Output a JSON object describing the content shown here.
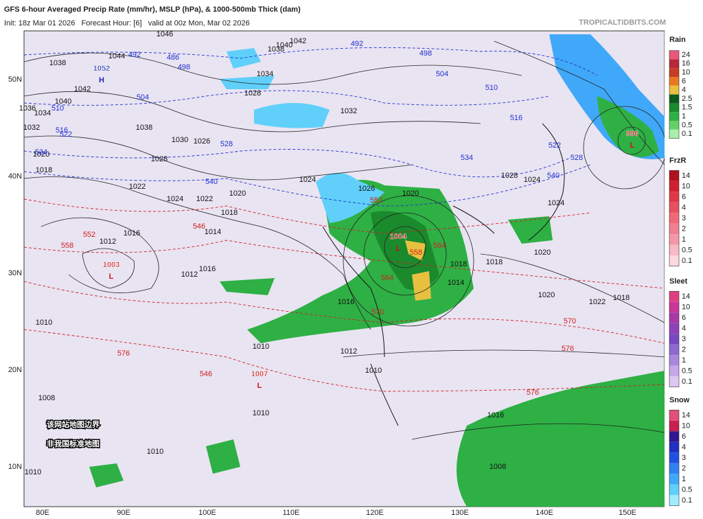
{
  "header": {
    "title": "GFS 6-hour Averaged Precip Rate (mm/hr), MSLP (hPa), & 1000-500mb Thick (dam)",
    "init": "Init: 18z Mar 01 2026   Forecast Hour: [6]   valid at 00z Mon, Mar 02 2026",
    "site": "TROPICALTIDBITS.COM"
  },
  "map": {
    "lon_labels": [
      "80E",
      "90E",
      "100E",
      "110E",
      "120E",
      "130E",
      "140E",
      "150E"
    ],
    "lat_labels": [
      "50N",
      "40N",
      "30N",
      "20N",
      "10N"
    ],
    "centers": [
      {
        "letter": "H",
        "value": "1052",
        "color": "#1a2ab0"
      },
      {
        "letter": "L",
        "value": "1003",
        "color": "#d01010"
      },
      {
        "letter": "L",
        "value": "1004",
        "color": "#d01010"
      },
      {
        "letter": "L",
        "value": "1007",
        "color": "#d01010"
      },
      {
        "letter": "L",
        "value": "996",
        "color": "#d01010"
      }
    ],
    "isobar_labels": [
      "1046",
      "1044",
      "1038",
      "1042",
      "1040",
      "1036",
      "1034",
      "1032",
      "1038",
      "1030",
      "1026",
      "1028",
      "1020",
      "1018",
      "1022",
      "1016",
      "1012",
      "1010",
      "1008",
      "1024",
      "1022",
      "1020",
      "1018",
      "1014",
      "1016",
      "1012",
      "1042",
      "1040",
      "1038",
      "1034",
      "1032",
      "1028",
      "1024",
      "1026",
      "1020",
      "1018",
      "1014",
      "1016",
      "1012",
      "1010",
      "1010",
      "1010",
      "1010",
      "1010",
      "1008",
      "1016",
      "1018",
      "1020",
      "1022",
      "1024",
      "1028",
      "1024",
      "1020",
      "1018"
    ],
    "thickness_labels": [
      {
        "text": "492",
        "color": "#2030d0"
      },
      {
        "text": "486",
        "color": "#2030d0"
      },
      {
        "text": "498",
        "color": "#2030d0"
      },
      {
        "text": "504",
        "color": "#2030d0"
      },
      {
        "text": "510",
        "color": "#2030d0"
      },
      {
        "text": "516",
        "color": "#2030d0"
      },
      {
        "text": "522",
        "color": "#2030d0"
      },
      {
        "text": "528",
        "color": "#2030d0"
      },
      {
        "text": "534",
        "color": "#2030d0"
      },
      {
        "text": "540",
        "color": "#2030d0"
      },
      {
        "text": "492",
        "color": "#2030d0"
      },
      {
        "text": "498",
        "color": "#2030d0"
      },
      {
        "text": "504",
        "color": "#2030d0"
      },
      {
        "text": "510",
        "color": "#2030d0"
      },
      {
        "text": "516",
        "color": "#2030d0"
      },
      {
        "text": "522",
        "color": "#2030d0"
      },
      {
        "text": "528",
        "color": "#2030d0"
      },
      {
        "text": "534",
        "color": "#2030d0"
      },
      {
        "text": "540",
        "color": "#2030d0"
      },
      {
        "text": "546",
        "color": "#d02020"
      },
      {
        "text": "552",
        "color": "#d02020"
      },
      {
        "text": "558",
        "color": "#d02020"
      },
      {
        "text": "564",
        "color": "#d02020"
      },
      {
        "text": "570",
        "color": "#d02020"
      },
      {
        "text": "576",
        "color": "#d02020"
      },
      {
        "text": "546",
        "color": "#d02020"
      },
      {
        "text": "552",
        "color": "#d02020"
      },
      {
        "text": "558",
        "color": "#d02020"
      },
      {
        "text": "564",
        "color": "#d02020"
      },
      {
        "text": "570",
        "color": "#d02020"
      },
      {
        "text": "576",
        "color": "#d02020"
      },
      {
        "text": "576",
        "color": "#d02020"
      }
    ],
    "notice": [
      "该网站地图边界",
      "非我国标准地图"
    ]
  },
  "legend": [
    {
      "name": "Rain",
      "levels": [
        "24",
        "16",
        "10",
        "6",
        "4",
        "2.5",
        "1.5",
        "1",
        "0.5",
        "0.1"
      ],
      "colors": [
        "#e8587a",
        "#b82838",
        "#c83c24",
        "#e87820",
        "#e8c040",
        "#0c5a1c",
        "#1a8a2c",
        "#2eb044",
        "#66d066",
        "#a8f0a8"
      ]
    },
    {
      "name": "FrzR",
      "levels": [
        "14",
        "10",
        "6",
        "4",
        "3",
        "2",
        "1",
        "0.5",
        "0.1"
      ],
      "colors": [
        "#b01020",
        "#d02030",
        "#e03848",
        "#e85060",
        "#f06878",
        "#f08090",
        "#f498a8",
        "#f8b8c4",
        "#fcd8e0"
      ]
    },
    {
      "name": "Sleet",
      "levels": [
        "14",
        "10",
        "6",
        "4",
        "3",
        "2",
        "1",
        "0.5",
        "0.1"
      ],
      "colors": [
        "#e04080",
        "#c83898",
        "#a838a8",
        "#9040b8",
        "#7848c0",
        "#9068d0",
        "#a888dc",
        "#c4a8e8",
        "#dcc8f0"
      ]
    },
    {
      "name": "Snow",
      "levels": [
        "14",
        "10",
        "6",
        "4",
        "3",
        "2",
        "1",
        "0.5",
        "0.1"
      ],
      "colors": [
        "#e05078",
        "#c82050",
        "#301890",
        "#2030c0",
        "#2050e0",
        "#3080f0",
        "#40a8f8",
        "#60d0fa",
        "#a0ecfc"
      ]
    }
  ]
}
